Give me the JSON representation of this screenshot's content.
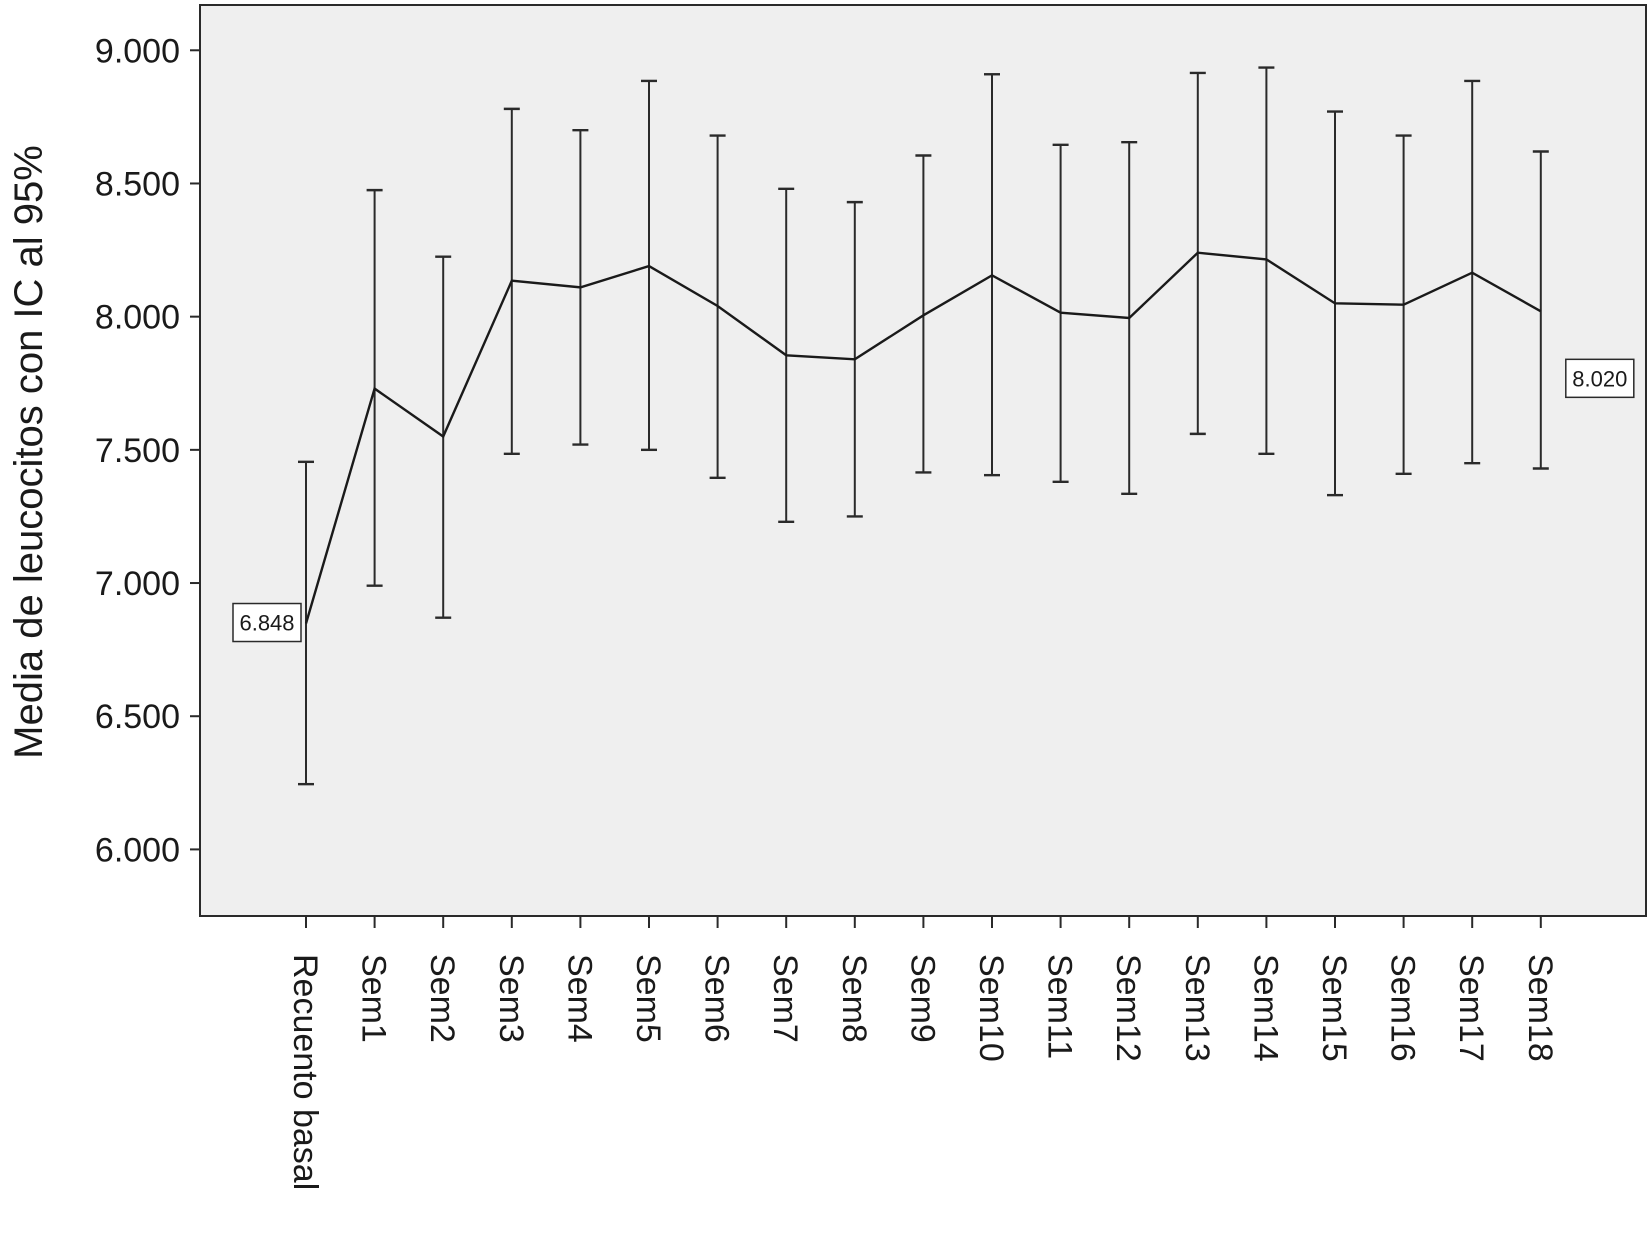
{
  "chart_data": {
    "type": "line",
    "title": "",
    "xlabel": "",
    "ylabel": "Media de leucocitos con IC al 95%",
    "ylim": [
      5750,
      9170
    ],
    "yticks": [
      6000,
      6500,
      7000,
      7500,
      8000,
      8500,
      9000
    ],
    "ytick_labels": [
      "6.000",
      "6.500",
      "7.000",
      "7.500",
      "8.000",
      "8.500",
      "9.000"
    ],
    "grid": false,
    "categories": [
      "Recuento basal",
      "Sem1",
      "Sem2",
      "Sem3",
      "Sem4",
      "Sem5",
      "Sem6",
      "Sem7",
      "Sem8",
      "Sem9",
      "Sem10",
      "Sem11",
      "Sem12",
      "Sem13",
      "Sem14",
      "Sem15",
      "Sem16",
      "Sem17",
      "Sem18"
    ],
    "series": [
      {
        "values": [
          6848,
          7730,
          7550,
          8135,
          8110,
          8190,
          8040,
          7855,
          7840,
          8005,
          8155,
          8015,
          7995,
          8240,
          8215,
          8050,
          8045,
          8165,
          8020
        ],
        "lower": [
          6245,
          6990,
          6870,
          7485,
          7520,
          7500,
          7395,
          7230,
          7250,
          7415,
          7405,
          7380,
          7335,
          7560,
          7485,
          7330,
          7410,
          7450,
          7430
        ],
        "upper": [
          7455,
          8475,
          8225,
          8780,
          8700,
          8885,
          8680,
          8480,
          8430,
          8605,
          8910,
          8645,
          8655,
          8915,
          8935,
          8770,
          8680,
          8885,
          8620
        ]
      }
    ],
    "annotations": [
      {
        "text": "6.848",
        "category": "Recuento basal"
      },
      {
        "text": "8.020",
        "category": "Sem18"
      }
    ],
    "colors": {
      "plot_bg": "#efefef",
      "line": "#1a1a1a",
      "errorbar": "#2a2a2a"
    }
  }
}
